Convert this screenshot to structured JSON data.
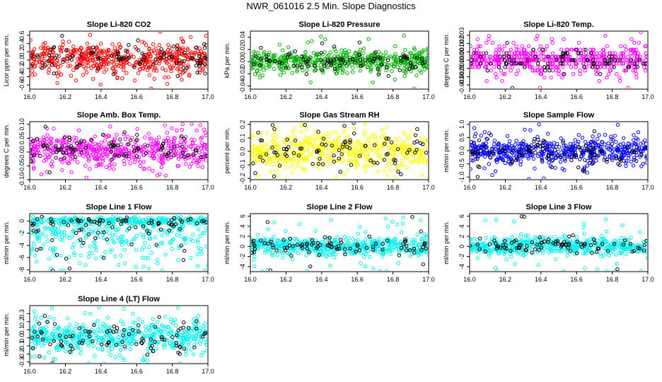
{
  "figure": {
    "title": "NWR_061016  2.5 Min. Slope Diagnostics",
    "xlim": [
      16.0,
      17.0
    ],
    "x_ticks": [
      "16.0",
      "16.2",
      "16.4",
      "16.6",
      "16.8",
      "17.0"
    ]
  },
  "colors": {
    "red": "#ff0000",
    "green": "#00b000",
    "magenta": "#ff00ff",
    "yellow": "#ffff00",
    "blue": "#0000ff",
    "cyan": "#00f0f0",
    "black": "#000000"
  },
  "chart_data": [
    {
      "type": "scatter",
      "title": "Slope Li-820 CO2",
      "ylabel": "Licor ppm per min.",
      "ylim": [
        -0.7,
        0.7
      ],
      "yticks": [
        -0.6,
        -0.4,
        -0.2,
        0.0,
        0.2,
        0.4,
        0.6
      ],
      "ytick_labels": [
        "-0.6",
        "-0.4",
        "-0.2",
        "0.0",
        "0.2",
        "0.4",
        "0.6"
      ],
      "x_range": [
        16.0,
        17.0
      ],
      "color": "red",
      "n_main": 520,
      "n_black": 90,
      "spread": 0.18,
      "center": 0.02,
      "outlier_max": 0.62,
      "pattern": "gauss"
    },
    {
      "type": "scatter",
      "title": "Slope Li-820 Pressure",
      "ylabel": "kPa per min.",
      "ylim": [
        -0.045,
        0.05
      ],
      "yticks": [
        -0.04,
        -0.02,
        0.0,
        0.02,
        0.04
      ],
      "ytick_labels": [
        "-0.04",
        "-0.02",
        "0.00",
        "0.02",
        "0.04"
      ],
      "x_range": [
        16.0,
        17.0
      ],
      "color": "green",
      "n_main": 520,
      "n_black": 90,
      "spread": 0.009,
      "center": 0.0,
      "outlier_max": 0.045,
      "pattern": "gauss"
    },
    {
      "type": "scatter",
      "title": "Slope Li-820 Temp.",
      "ylabel": "degrees C per min.",
      "ylim": [
        -0.0035,
        0.0035
      ],
      "yticks": [
        -0.003,
        -0.002,
        -0.001,
        0.0,
        0.001,
        0.002,
        0.003
      ],
      "ytick_labels": [
        "-0.003",
        "-0.002",
        "-0.001",
        "0.000",
        "0.001",
        "0.002",
        "0.003"
      ],
      "x_range": [
        16.0,
        17.0
      ],
      "color": "magenta",
      "n_main": 520,
      "n_black": 90,
      "spread": 0.0008,
      "center": 0.0,
      "outlier_max": 0.0033,
      "pattern": "quantized",
      "quantum": 0.00042
    },
    {
      "type": "scatter",
      "title": "Slope Amb. Box Temp.",
      "ylabel": "degrees C per min.",
      "ylim": [
        -0.1,
        0.11
      ],
      "yticks": [
        -0.1,
        -0.05,
        0.0,
        0.05,
        0.1
      ],
      "ytick_labels": [
        "-0.10",
        "-0.05",
        "0.00",
        "0.05",
        "0.10"
      ],
      "x_range": [
        16.0,
        17.0
      ],
      "color": "magenta",
      "n_main": 520,
      "n_black": 90,
      "spread": 0.028,
      "center": 0.005,
      "outlier_max": 0.1,
      "pattern": "gauss"
    },
    {
      "type": "scatter",
      "title": "Slope Gas Stream RH",
      "ylabel": "percent per min.",
      "ylim": [
        -0.21,
        0.22
      ],
      "yticks": [
        -0.2,
        -0.1,
        0.0,
        0.1,
        0.2
      ],
      "ytick_labels": [
        "-0.2",
        "-0.1",
        "0.0",
        "0.1",
        "0.2"
      ],
      "x_range": [
        16.0,
        17.0
      ],
      "color": "yellow",
      "n_main": 520,
      "n_black": 90,
      "spread": 0.07,
      "center": 0.0,
      "outlier_max": 0.2,
      "pattern": "gauss"
    },
    {
      "type": "scatter",
      "title": "Slope Sample Flow",
      "ylabel": "ml/min per min.",
      "ylim": [
        -1.1,
        1.1
      ],
      "yticks": [
        -1.0,
        -0.5,
        0.0,
        0.5,
        1.0
      ],
      "ytick_labels": [
        "-1.0",
        "-0.5",
        "0.0",
        "0.5",
        "1.0"
      ],
      "x_range": [
        16.0,
        17.0
      ],
      "color": "blue",
      "n_main": 520,
      "n_black": 90,
      "spread": 0.25,
      "center": -0.05,
      "outlier_max": 1.05,
      "pattern": "gauss"
    },
    {
      "type": "scatter",
      "title": "Slope Line 1 Flow",
      "ylabel": "ml/min per min.",
      "ylim": [
        -8.3,
        1.2
      ],
      "yticks": [
        -8,
        -6,
        -4,
        -2,
        0
      ],
      "ytick_labels": [
        "-8",
        "-6",
        "-4",
        "-2",
        "0"
      ],
      "x_range": [
        16.0,
        17.0
      ],
      "color": "cyan",
      "n_main": 520,
      "n_black": 90,
      "spread": 0.4,
      "center": 0.0,
      "outlier_max": 8.0,
      "pattern": "skew_neg"
    },
    {
      "type": "scatter",
      "title": "Slope Line 2 Flow",
      "ylabel": "ml/min per min.",
      "ylim": [
        -5.0,
        6.5
      ],
      "yticks": [
        -4,
        -2,
        0,
        2,
        4,
        6
      ],
      "ytick_labels": [
        "-4",
        "-2",
        "0",
        "2",
        "4",
        "6"
      ],
      "x_range": [
        16.0,
        17.0
      ],
      "color": "cyan",
      "n_main": 520,
      "n_black": 90,
      "spread": 0.9,
      "center": 0.0,
      "outlier_max": 6.0,
      "pattern": "gauss"
    },
    {
      "type": "scatter",
      "title": "Slope Line 3 Flow",
      "ylabel": "ml/min per min.",
      "ylim": [
        -5.0,
        6.5
      ],
      "yticks": [
        -4,
        -2,
        0,
        2,
        4,
        6
      ],
      "ytick_labels": [
        "-4",
        "-2",
        "0",
        "2",
        "4",
        "6"
      ],
      "x_range": [
        16.0,
        17.0
      ],
      "color": "cyan",
      "n_main": 520,
      "n_black": 90,
      "spread": 0.9,
      "center": 0.0,
      "outlier_max": 6.0,
      "pattern": "gauss"
    },
    {
      "type": "scatter",
      "title": "Slope Line 4 (LT) Flow",
      "ylabel": "ml/min per min.",
      "ylim": [
        -0.32,
        0.4
      ],
      "yticks": [
        -0.3,
        -0.2,
        -0.1,
        0.0,
        0.1,
        0.2,
        0.3
      ],
      "ytick_labels": [
        "-0.3",
        "-0.2",
        "-0.1",
        "0.0",
        "0.1",
        "0.2",
        "0.3"
      ],
      "x_range": [
        16.0,
        17.0
      ],
      "color": "cyan",
      "n_main": 520,
      "n_black": 90,
      "spread": 0.1,
      "center": 0.0,
      "outlier_max": 0.38,
      "pattern": "gauss"
    }
  ]
}
